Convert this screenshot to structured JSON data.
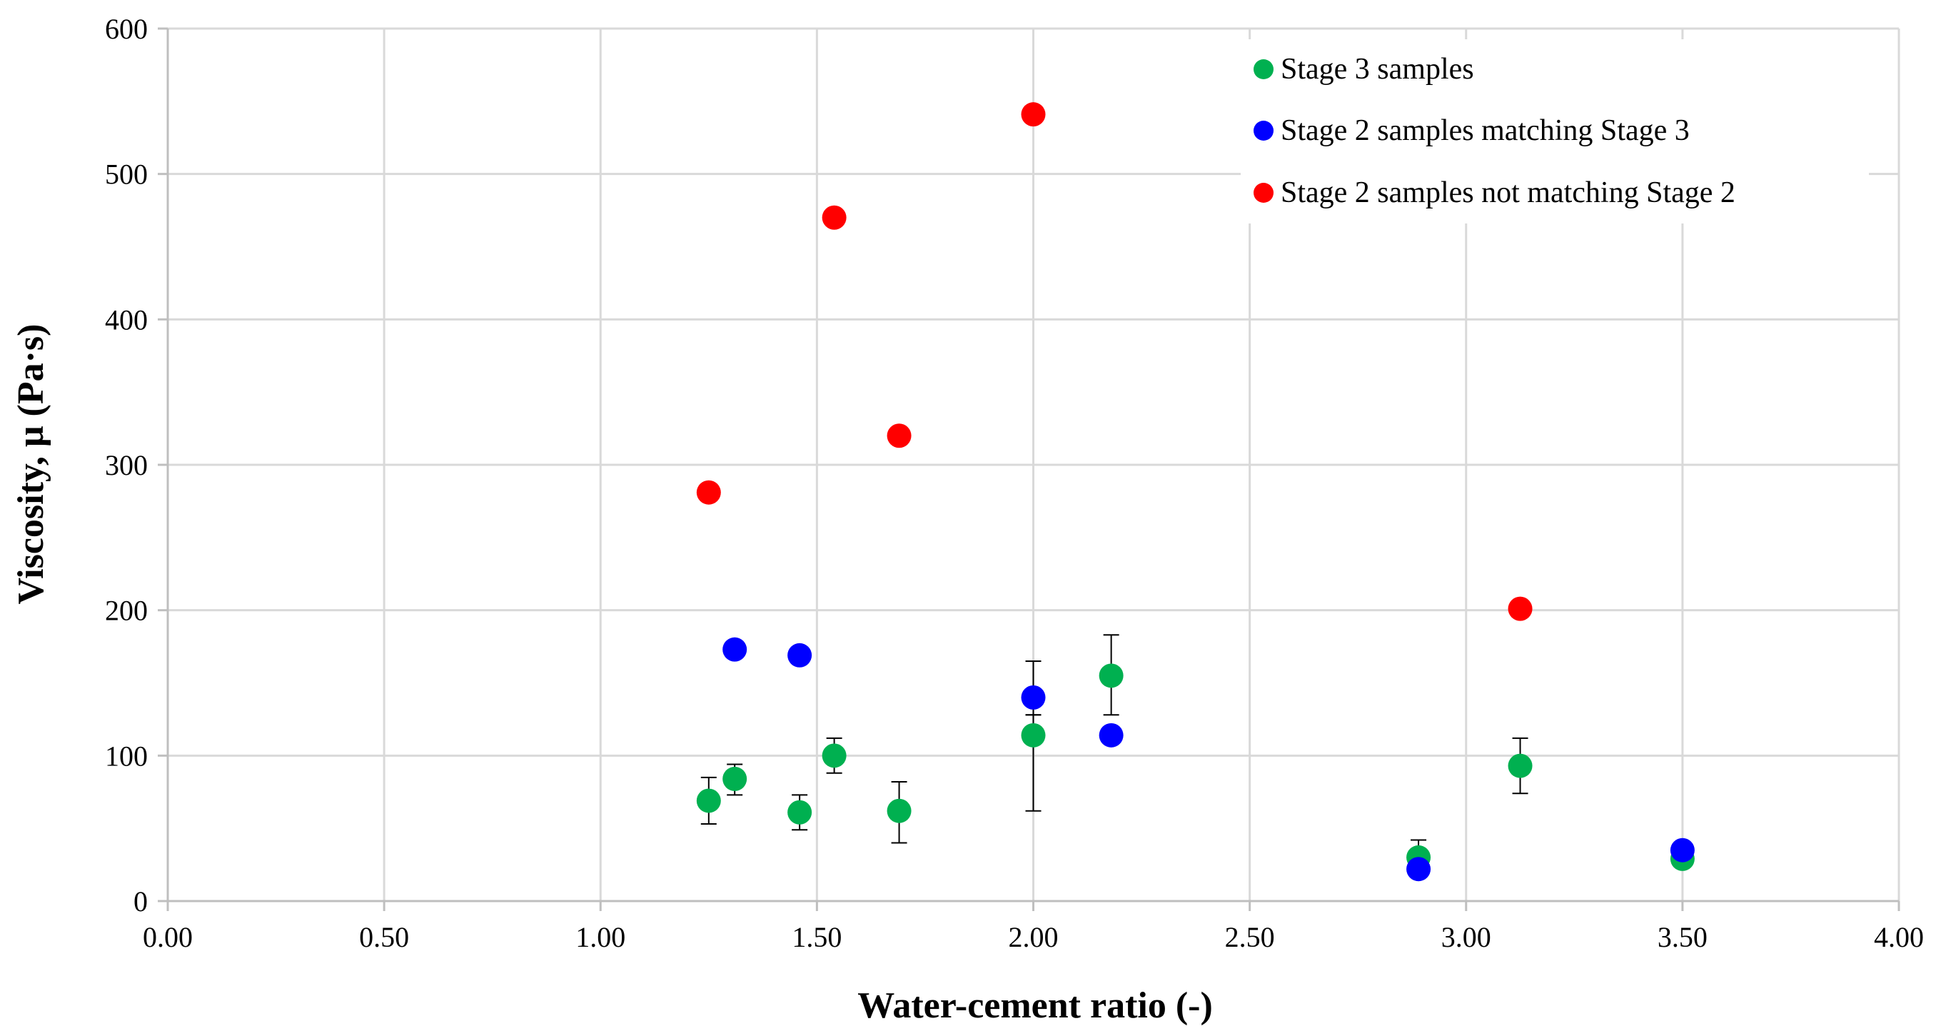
{
  "chart_data": {
    "type": "scatter",
    "title": "",
    "xlabel": "Water-cement  ratio (-)",
    "ylabel": "Viscosity, μ (Pa·s)",
    "xlim": [
      0,
      4
    ],
    "ylim": [
      0,
      600
    ],
    "xticks": [
      0,
      0.5,
      1,
      1.5,
      2,
      2.5,
      3,
      3.5,
      4
    ],
    "xtick_labels": [
      "0.00",
      "0.50",
      "1.00",
      "1.50",
      "2.00",
      "2.50",
      "3.00",
      "3.50",
      "4.00"
    ],
    "yticks": [
      0,
      100,
      200,
      300,
      400,
      500,
      600
    ],
    "ytick_labels": [
      "0",
      "100",
      "200",
      "300",
      "400",
      "500",
      "600"
    ],
    "grid": true,
    "legend_position": "top-right",
    "series": [
      {
        "name": "Stage 3 samples",
        "color": "#00b050",
        "points": [
          {
            "x": 1.25,
            "y": 69,
            "err_low": 53,
            "err_high": 85
          },
          {
            "x": 1.31,
            "y": 84,
            "err_low": 73,
            "err_high": 94
          },
          {
            "x": 1.46,
            "y": 61,
            "err_low": 49,
            "err_high": 73
          },
          {
            "x": 1.54,
            "y": 100,
            "err_low": 88,
            "err_high": 112
          },
          {
            "x": 1.69,
            "y": 62,
            "err_low": 40,
            "err_high": 82
          },
          {
            "x": 2.0,
            "y": 114,
            "err_low": 62,
            "err_high": 128
          },
          {
            "x": 2.18,
            "y": 155,
            "err_low": 128,
            "err_high": 183
          },
          {
            "x": 2.89,
            "y": 30,
            "err_low": 20,
            "err_high": 42
          },
          {
            "x": 3.125,
            "y": 93,
            "err_low": 74,
            "err_high": 112
          },
          {
            "x": 3.5,
            "y": 29,
            "err_low": 25,
            "err_high": 34
          }
        ]
      },
      {
        "name": "Stage 2 samples matching Stage 3",
        "color": "#0000ff",
        "points": [
          {
            "x": 1.31,
            "y": 173
          },
          {
            "x": 1.46,
            "y": 169
          },
          {
            "x": 2.0,
            "y": 140
          },
          {
            "x": 2.18,
            "y": 114
          },
          {
            "x": 2.89,
            "y": 22
          },
          {
            "x": 3.5,
            "y": 35
          }
        ],
        "error_bars_on": [
          {
            "x": 2.0,
            "err_low": 128,
            "err_high": 165
          }
        ]
      },
      {
        "name": "Stage 2 samples not matching Stage 2",
        "color": "#ff0000",
        "points": [
          {
            "x": 1.25,
            "y": 281
          },
          {
            "x": 1.54,
            "y": 470
          },
          {
            "x": 1.69,
            "y": 320
          },
          {
            "x": 2.0,
            "y": 541
          },
          {
            "x": 3.125,
            "y": 201
          }
        ]
      }
    ]
  }
}
